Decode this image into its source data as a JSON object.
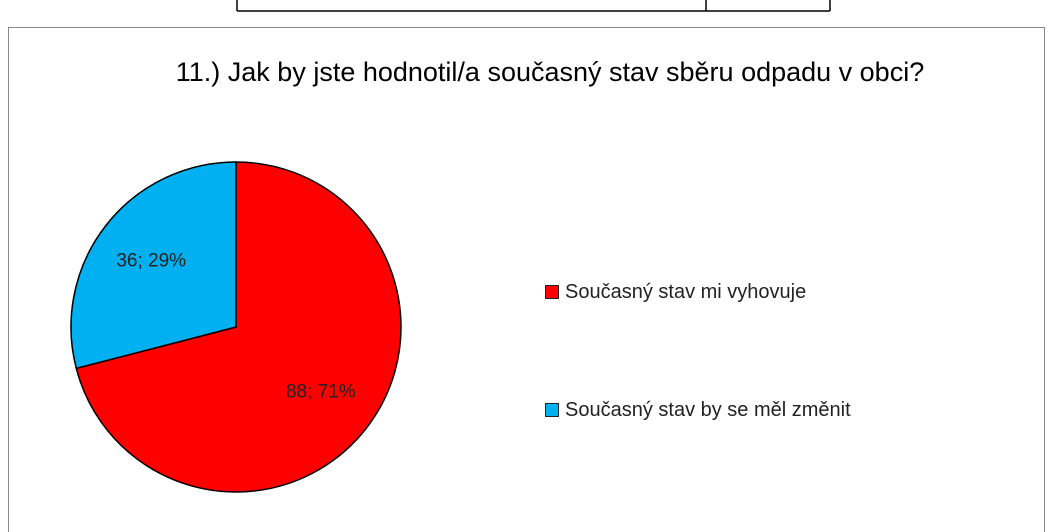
{
  "chart_data": {
    "type": "pie",
    "title": "11.) Jak by jste hodnotil/a současný stav sběru  odpadu v obci?",
    "categories": [
      "Současný stav mi vyhovuje",
      "Současný stav by se měl změnit"
    ],
    "values": [
      88,
      36
    ],
    "value_labels": [
      "88; 71%",
      "36; 29%"
    ],
    "colors": [
      "#ff0000",
      "#00b0f0"
    ],
    "legend": "right"
  }
}
